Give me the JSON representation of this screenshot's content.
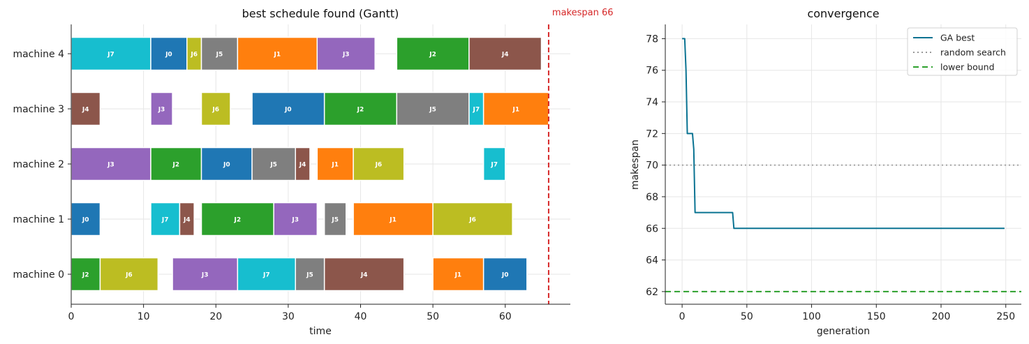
{
  "chart_data": [
    {
      "type": "gantt",
      "title": "best schedule found (Gantt)",
      "xlabel": "time",
      "ylabel": "",
      "xlim": [
        0,
        69
      ],
      "xticks": [
        0,
        10,
        20,
        30,
        40,
        50,
        60
      ],
      "machines": [
        "machine 0",
        "machine 1",
        "machine 2",
        "machine 3",
        "machine 4"
      ],
      "job_colors": {
        "J0": "#1f77b4",
        "J1": "#ff7f0e",
        "J2": "#2ca02c",
        "J3": "#9467bd",
        "J4": "#8c564b",
        "J5": "#7f7f7f",
        "J6": "#bcbd22",
        "J7": "#17becf"
      },
      "tasks": [
        {
          "machine": 0,
          "job": "J2",
          "start": 0,
          "end": 4
        },
        {
          "machine": 0,
          "job": "J6",
          "start": 4,
          "end": 12
        },
        {
          "machine": 0,
          "job": "J3",
          "start": 14,
          "end": 23
        },
        {
          "machine": 0,
          "job": "J7",
          "start": 23,
          "end": 31
        },
        {
          "machine": 0,
          "job": "J5",
          "start": 31,
          "end": 35
        },
        {
          "machine": 0,
          "job": "J4",
          "start": 35,
          "end": 46
        },
        {
          "machine": 0,
          "job": "J1",
          "start": 50,
          "end": 57
        },
        {
          "machine": 0,
          "job": "J0",
          "start": 57,
          "end": 63
        },
        {
          "machine": 1,
          "job": "J0",
          "start": 0,
          "end": 4
        },
        {
          "machine": 1,
          "job": "J7",
          "start": 11,
          "end": 15
        },
        {
          "machine": 1,
          "job": "J4",
          "start": 15,
          "end": 17
        },
        {
          "machine": 1,
          "job": "J2",
          "start": 18,
          "end": 28
        },
        {
          "machine": 1,
          "job": "J3",
          "start": 28,
          "end": 34
        },
        {
          "machine": 1,
          "job": "J5",
          "start": 35,
          "end": 38
        },
        {
          "machine": 1,
          "job": "J1",
          "start": 39,
          "end": 50
        },
        {
          "machine": 1,
          "job": "J6",
          "start": 50,
          "end": 61
        },
        {
          "machine": 2,
          "job": "J3",
          "start": 0,
          "end": 11
        },
        {
          "machine": 2,
          "job": "J2",
          "start": 11,
          "end": 18
        },
        {
          "machine": 2,
          "job": "J0",
          "start": 18,
          "end": 25
        },
        {
          "machine": 2,
          "job": "J5",
          "start": 25,
          "end": 31
        },
        {
          "machine": 2,
          "job": "J4",
          "start": 31,
          "end": 33
        },
        {
          "machine": 2,
          "job": "J1",
          "start": 34,
          "end": 39
        },
        {
          "machine": 2,
          "job": "J6",
          "start": 39,
          "end": 46
        },
        {
          "machine": 2,
          "job": "J7",
          "start": 57,
          "end": 60
        },
        {
          "machine": 3,
          "job": "J4",
          "start": 0,
          "end": 4
        },
        {
          "machine": 3,
          "job": "J3",
          "start": 11,
          "end": 14
        },
        {
          "machine": 3,
          "job": "J6",
          "start": 18,
          "end": 22
        },
        {
          "machine": 3,
          "job": "J0",
          "start": 25,
          "end": 35
        },
        {
          "machine": 3,
          "job": "J2",
          "start": 35,
          "end": 45
        },
        {
          "machine": 3,
          "job": "J5",
          "start": 45,
          "end": 55
        },
        {
          "machine": 3,
          "job": "J7",
          "start": 55,
          "end": 57
        },
        {
          "machine": 3,
          "job": "J1",
          "start": 57,
          "end": 66
        },
        {
          "machine": 4,
          "job": "J7",
          "start": 0,
          "end": 11
        },
        {
          "machine": 4,
          "job": "J0",
          "start": 11,
          "end": 16
        },
        {
          "machine": 4,
          "job": "J6",
          "start": 16,
          "end": 18
        },
        {
          "machine": 4,
          "job": "J5",
          "start": 18,
          "end": 23
        },
        {
          "machine": 4,
          "job": "J1",
          "start": 23,
          "end": 34
        },
        {
          "machine": 4,
          "job": "J3",
          "start": 34,
          "end": 42
        },
        {
          "machine": 4,
          "job": "J2",
          "start": 45,
          "end": 55
        },
        {
          "machine": 4,
          "job": "J4",
          "start": 55,
          "end": 65
        }
      ],
      "makespan": 66,
      "makespan_label": "makespan 66",
      "makespan_color": "#d62728",
      "grid": true
    },
    {
      "type": "line",
      "title": "convergence",
      "xlabel": "generation",
      "ylabel": "makespan",
      "xlim": [
        -13,
        262
      ],
      "ylim": [
        61.2,
        78.9
      ],
      "xticks": [
        0,
        50,
        100,
        150,
        200,
        250
      ],
      "yticks": [
        62,
        64,
        66,
        68,
        70,
        72,
        74,
        76,
        78
      ],
      "grid": true,
      "legend_position": "top-right",
      "series": [
        {
          "name": "GA best",
          "color": "#0a7392",
          "style": "solid",
          "x": [
            0,
            2,
            3,
            4,
            8,
            9,
            10,
            39,
            40,
            249
          ],
          "y": [
            78,
            78,
            76,
            72,
            72,
            71,
            67,
            67,
            66,
            66
          ]
        },
        {
          "name": "random search",
          "color": "#999999",
          "style": "dotted",
          "y_const": 70
        },
        {
          "name": "lower bound",
          "color": "#2ca02c",
          "style": "dashed",
          "y_const": 62
        }
      ]
    }
  ]
}
